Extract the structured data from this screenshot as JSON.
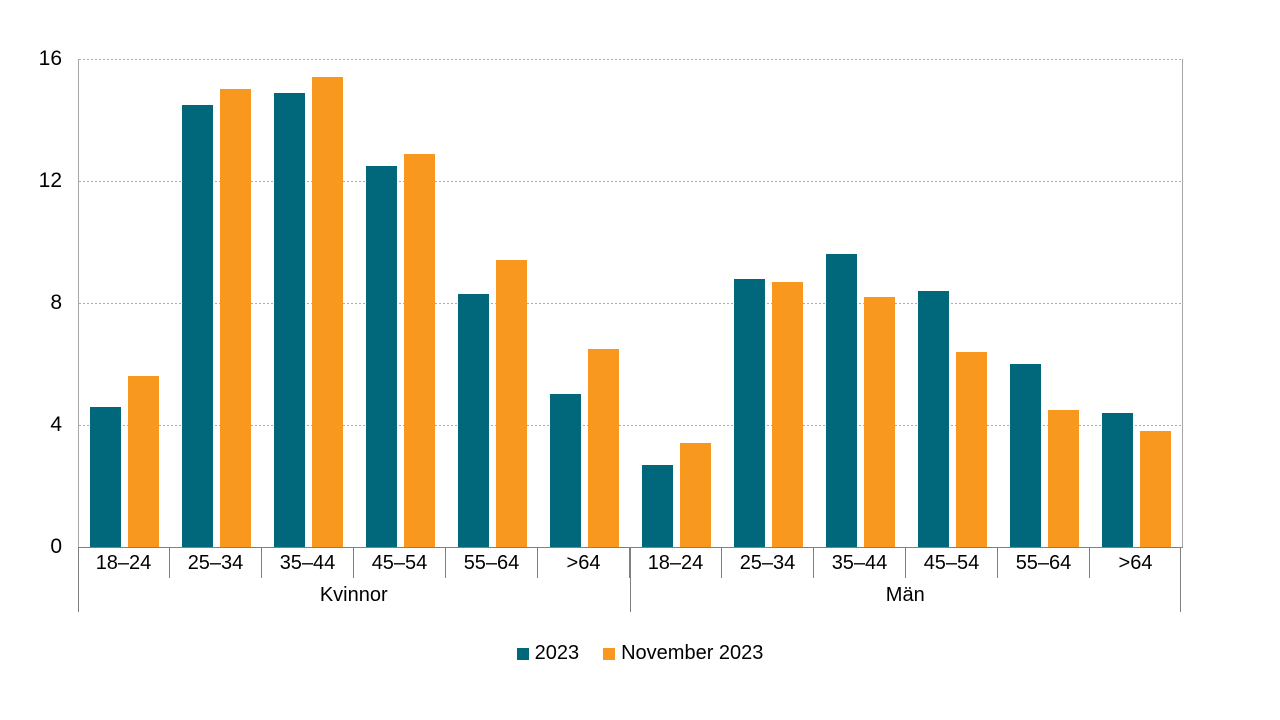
{
  "chart_data": {
    "type": "bar",
    "title": "",
    "ylim": [
      0,
      16
    ],
    "yticks": [
      16,
      12,
      8,
      4,
      0
    ],
    "grid": true,
    "legend_position": "bottom-center",
    "age_categories": [
      "18–24",
      "25–34",
      "35–44",
      "45–54",
      "55–64",
      ">64"
    ],
    "groups": [
      {
        "label": "Kvinnor",
        "series": [
          {
            "name": "2023",
            "values": [
              4.6,
              14.5,
              14.9,
              12.5,
              8.3,
              5.0
            ]
          },
          {
            "name": "November 2023",
            "values": [
              5.6,
              15.0,
              15.4,
              12.9,
              9.4,
              6.5
            ]
          }
        ]
      },
      {
        "label": "Män",
        "series": [
          {
            "name": "2023",
            "values": [
              2.7,
              8.8,
              9.6,
              8.4,
              6.0,
              4.4
            ]
          },
          {
            "name": "November 2023",
            "values": [
              3.4,
              8.7,
              8.2,
              6.4,
              4.5,
              3.8
            ]
          }
        ]
      }
    ],
    "legend": [
      {
        "label": "2023",
        "color": "#00687A"
      },
      {
        "label": "November 2023",
        "color": "#F8981F"
      }
    ]
  }
}
